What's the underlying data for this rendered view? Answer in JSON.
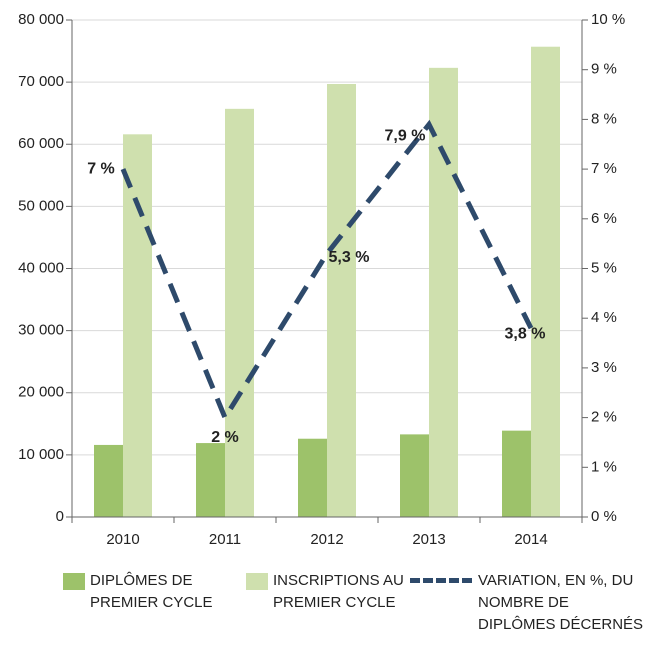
{
  "chart_data": {
    "type": "bar",
    "categories": [
      "2010",
      "2011",
      "2012",
      "2013",
      "2014"
    ],
    "series": [
      {
        "name": "DIPLÔMES DE PREMIER CYCLE",
        "color": "#9dc26a",
        "values": [
          11600,
          11900,
          12600,
          13300,
          13900
        ]
      },
      {
        "name": "INSCRIPTIONS AU PREMIER CYCLE",
        "color": "#cfe0ae",
        "values": [
          61600,
          65700,
          69700,
          72300,
          75700
        ]
      },
      {
        "name": "VARIATION, EN %, DU NOMBRE DE DIPLÔMES DÉCERNÉS",
        "color": "#2e4a6b",
        "type": "line",
        "axis": "y2",
        "values": [
          7,
          2,
          5.3,
          7.9,
          3.8
        ],
        "value_labels": [
          "7 %",
          "2 %",
          "5,3 %",
          "7,9 %",
          "3,8 %"
        ]
      }
    ],
    "ylim": [
      0,
      80000
    ],
    "yticks": [
      0,
      {
        "value": 10000,
        "label": "10 000"
      },
      {
        "value": 20000,
        "label": "20 000"
      },
      {
        "value": 30000,
        "label": "30 000"
      },
      {
        "value": 40000,
        "label": "40 000"
      },
      {
        "value": 50000,
        "label": "50 000"
      },
      {
        "value": 60000,
        "label": "60 000"
      },
      {
        "value": 70000,
        "label": "70 000"
      },
      {
        "value": 80000,
        "label": "80 000"
      }
    ],
    "y2lim": [
      0,
      10
    ],
    "y2ticks": [
      {
        "value": 0,
        "label": "0 %"
      },
      {
        "value": 1,
        "label": "1 %"
      },
      {
        "value": 2,
        "label": "2 %"
      },
      {
        "value": 3,
        "label": "3 %"
      },
      {
        "value": 4,
        "label": "4 %"
      },
      {
        "value": 5,
        "label": "5 %"
      },
      {
        "value": 6,
        "label": "6 %"
      },
      {
        "value": 7,
        "label": "7 %"
      },
      {
        "value": 8,
        "label": "8 %"
      },
      {
        "value": 9,
        "label": "9 %"
      },
      {
        "value": 10,
        "label": "10 %"
      }
    ],
    "grid": true
  }
}
